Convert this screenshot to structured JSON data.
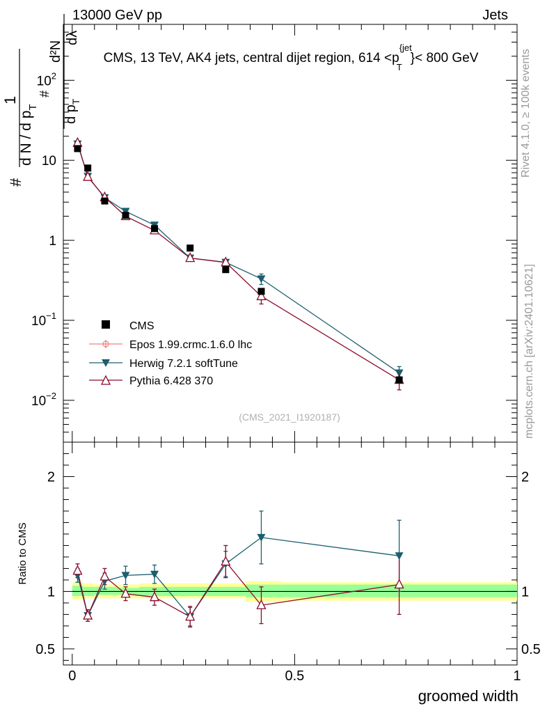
{
  "header": {
    "left": "13000 GeV pp",
    "right": "Jets"
  },
  "side_labels": {
    "rivet": "Rivet 4.1.0, ≥ 100k events",
    "mcplots": "mcplots.cern.ch [arXiv:2401.10621]"
  },
  "chart_data": [
    {
      "type": "line",
      "panel": "main",
      "title": "CMS, 13 TeV, AK4 jets, central dijet region, 614 <p_T^{jet}< 800 GeV",
      "title_parts": {
        "pre": "CMS, 13 TeV, AK4 jets, central dijet region, 614 <p",
        "sup": "{jet",
        "sub": "T",
        "post": "}< 800 GeV"
      },
      "ylabel_parts": {
        "hash": "#",
        "one": "1",
        "den": "d N / d p",
        "sub": "T",
        "num": "d²N",
        "inner_num": "#",
        "inner_den": "d p",
        "inner_sub": "T",
        "dl": "dλ"
      },
      "yscale": "log",
      "ylim": [
        0.003,
        500
      ],
      "xlim": [
        -0.02,
        1.0
      ],
      "y_ticks": [
        {
          "v": 100,
          "base": "10",
          "exp": "2"
        },
        {
          "v": 10,
          "label": "10"
        },
        {
          "v": 1,
          "label": "1"
        },
        {
          "v": 0.1,
          "base": "10",
          "exp": "−1"
        },
        {
          "v": 0.01,
          "base": "10",
          "exp": "−2"
        }
      ],
      "watermark": "(CMS_2021_I1920187)",
      "legend": [
        "CMS",
        "Epos 1.99.crmc.1.6.0 lhc",
        "Herwig 7.2.1 softTune",
        "Pythia 6.428 370"
      ],
      "x_bins": [
        [
          0.0,
          0.025
        ],
        [
          0.025,
          0.05
        ],
        [
          0.05,
          0.1
        ],
        [
          0.1,
          0.15
        ],
        [
          0.15,
          0.225
        ],
        [
          0.225,
          0.3
        ],
        [
          0.3,
          0.39
        ],
        [
          0.39,
          0.47
        ],
        [
          0.47,
          1.0
        ]
      ],
      "series": [
        {
          "name": "CMS",
          "color": "#000000",
          "marker": "square",
          "x": [
            0.012,
            0.035,
            0.073,
            0.12,
            0.185,
            0.265,
            0.345,
            0.425,
            0.735
          ],
          "y": [
            14.0,
            8.0,
            3.1,
            2.05,
            1.4,
            0.8,
            0.43,
            0.23,
            0.018
          ]
        },
        {
          "name": "Epos 1.99.crmc.1.6.0 lhc",
          "color": "#f08080",
          "marker": "cross-circle",
          "x": [],
          "y": []
        },
        {
          "name": "Herwig 7.2.1 softTune",
          "color": "#1b5e6e",
          "marker": "triangle-down",
          "x": [
            0.012,
            0.035,
            0.073,
            0.12,
            0.185,
            0.265,
            0.345,
            0.425,
            0.735
          ],
          "y": [
            16.0,
            6.3,
            3.4,
            2.3,
            1.55,
            0.6,
            0.53,
            0.33,
            0.022
          ],
          "err": [
            0.06,
            0.06,
            0.06,
            0.06,
            0.06,
            0.06,
            0.08,
            0.15,
            0.2
          ]
        },
        {
          "name": "Pythia 6.428 370",
          "color": "#8b0a2a",
          "marker": "triangle-up",
          "x": [
            0.012,
            0.035,
            0.073,
            0.12,
            0.185,
            0.265,
            0.345,
            0.425,
            0.735
          ],
          "y": [
            16.5,
            6.2,
            3.45,
            2.0,
            1.33,
            0.6,
            0.53,
            0.2,
            0.018
          ],
          "err": [
            0.06,
            0.06,
            0.06,
            0.06,
            0.06,
            0.06,
            0.08,
            0.2,
            0.25
          ]
        }
      ]
    },
    {
      "type": "line",
      "panel": "ratio",
      "ylabel": "Ratio to CMS",
      "xlabel": "groomed width",
      "ylim": [
        0.36,
        2.3
      ],
      "xlim": [
        -0.02,
        1.0
      ],
      "y_ticks": [
        {
          "v": 2,
          "label": "2"
        },
        {
          "v": 1,
          "label": "1"
        },
        {
          "v": 0.5,
          "label": "0.5"
        }
      ],
      "x_ticks": [
        {
          "v": 0,
          "label": "0"
        },
        {
          "v": 0.5,
          "label": "0.5"
        },
        {
          "v": 1,
          "label": "1"
        }
      ],
      "reference": 1.0,
      "bands": {
        "yellow": "#ffff99",
        "green": "#99ff99",
        "bins": [
          {
            "x": [
              0.0,
              0.025
            ],
            "yellow": [
              0.93,
              1.08
            ],
            "green": [
              0.96,
              1.05
            ]
          },
          {
            "x": [
              0.025,
              0.05
            ],
            "yellow": [
              0.94,
              1.07
            ],
            "green": [
              0.96,
              1.04
            ]
          },
          {
            "x": [
              0.05,
              0.1
            ],
            "yellow": [
              0.94,
              1.06
            ],
            "green": [
              0.97,
              1.04
            ]
          },
          {
            "x": [
              0.1,
              0.15
            ],
            "yellow": [
              0.94,
              1.06
            ],
            "green": [
              0.97,
              1.03
            ]
          },
          {
            "x": [
              0.15,
              0.225
            ],
            "yellow": [
              0.94,
              1.07
            ],
            "green": [
              0.96,
              1.04
            ]
          },
          {
            "x": [
              0.225,
              0.3
            ],
            "yellow": [
              0.94,
              1.07
            ],
            "green": [
              0.96,
              1.04
            ]
          },
          {
            "x": [
              0.3,
              0.39
            ],
            "yellow": [
              0.94,
              1.07
            ],
            "green": [
              0.96,
              1.04
            ]
          },
          {
            "x": [
              0.39,
              0.47
            ],
            "yellow": [
              0.91,
              1.09
            ],
            "green": [
              0.95,
              1.06
            ]
          },
          {
            "x": [
              0.47,
              1.0
            ],
            "yellow": [
              0.92,
              1.08
            ],
            "green": [
              0.95,
              1.06
            ]
          }
        ]
      },
      "series": [
        {
          "name": "Herwig 7.2.1 softTune",
          "color": "#1b5e6e",
          "marker": "triangle-down",
          "x": [
            0.012,
            0.035,
            0.073,
            0.12,
            0.185,
            0.265,
            0.345,
            0.425,
            0.735
          ],
          "y": [
            1.14,
            0.79,
            1.09,
            1.14,
            1.15,
            0.78,
            1.24,
            1.47,
            1.31
          ],
          "err": [
            0.06,
            0.05,
            0.07,
            0.08,
            0.08,
            0.08,
            0.11,
            0.23,
            0.31
          ]
        },
        {
          "name": "Pythia 6.428 370",
          "color": "#8b0a2a",
          "marker": "triangle-up",
          "x": [
            0.012,
            0.035,
            0.073,
            0.12,
            0.185,
            0.265,
            0.345,
            0.425,
            0.735
          ],
          "y": [
            1.18,
            0.79,
            1.13,
            0.98,
            0.95,
            0.78,
            1.26,
            0.88,
            1.06
          ],
          "err": [
            0.06,
            0.05,
            0.07,
            0.06,
            0.07,
            0.09,
            0.14,
            0.16,
            0.26
          ]
        }
      ]
    }
  ]
}
